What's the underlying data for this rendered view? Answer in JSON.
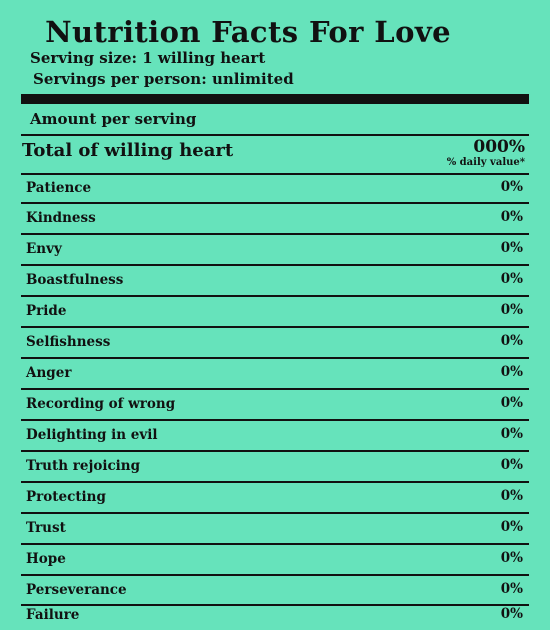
{
  "label": {
    "title": "Nutrition Facts For Love",
    "serving_size": "Serving size: 1 willing heart",
    "servings_per": "Servings per person: unlimited",
    "amount_per_serving": "Amount per serving",
    "total_label": "Total of willing heart",
    "total_value": "000%",
    "daily_value_note": "% daily value*"
  },
  "nutrients": [
    {
      "name": "Patience",
      "value": "0%"
    },
    {
      "name": "Kindness",
      "value": "0%"
    },
    {
      "name": "Envy",
      "value": "0%"
    },
    {
      "name": "Boastfulness",
      "value": "0%"
    },
    {
      "name": "Pride",
      "value": "0%"
    },
    {
      "name": "Selfishness",
      "value": "0%"
    },
    {
      "name": "Anger",
      "value": "0%"
    },
    {
      "name": "Recording of wrong",
      "value": "0%"
    },
    {
      "name": "Delighting in evil",
      "value": "0%"
    },
    {
      "name": "Truth rejoicing",
      "value": "0%"
    },
    {
      "name": "Protecting",
      "value": "0%"
    },
    {
      "name": "Trust",
      "value": "0%"
    },
    {
      "name": "Hope",
      "value": "0%"
    },
    {
      "name": "Perseverance",
      "value": "0%"
    },
    {
      "name": "Failure",
      "value": "0%"
    }
  ]
}
